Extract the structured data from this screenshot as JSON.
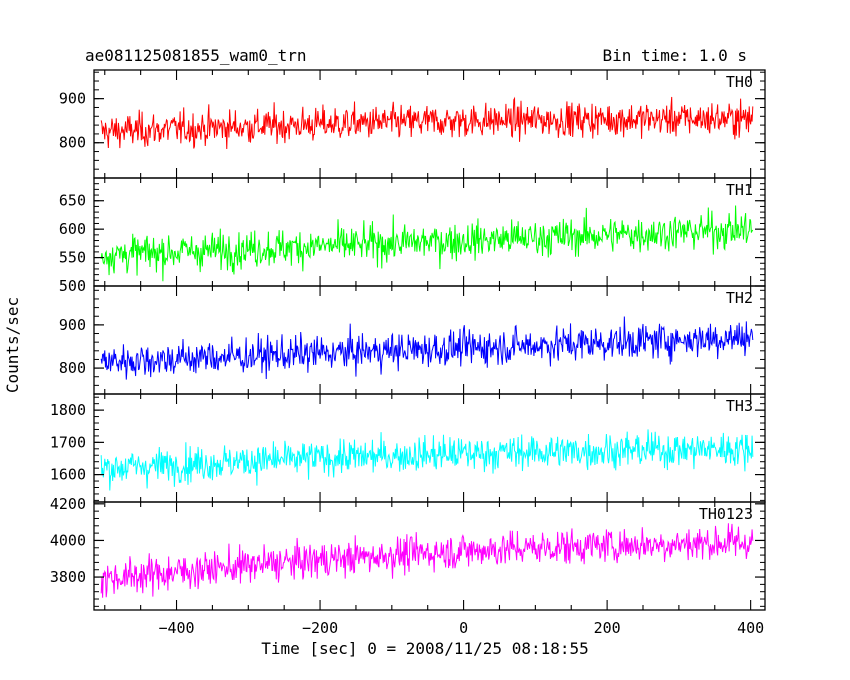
{
  "chart_data": {
    "type": "line",
    "title": "ae081125081855_wam0_trn",
    "subtitle": "Bin time: 1.0 s",
    "xlabel": "Time [sec] 0 = 2008/11/25 08:18:55",
    "ylabel": "Counts/sec",
    "xlim": [
      -515,
      420
    ],
    "x_ticks": [
      -400,
      -200,
      0,
      200,
      400
    ],
    "x_tick_labels": [
      "−400",
      "−200",
      "0",
      "200",
      "400"
    ],
    "x_range": [
      -505,
      403
    ],
    "grid": false,
    "panels": [
      {
        "name": "TH0",
        "color": "#ff0000",
        "ylim": [
          720,
          965
        ],
        "y_ticks": [
          800,
          900
        ],
        "y_tick_labels": [
          "800",
          "900"
        ],
        "mean_start": 825,
        "mean_end": 855,
        "mean_peak": 868,
        "noise": 30
      },
      {
        "name": "TH1",
        "color": "#00ff00",
        "ylim": [
          500,
          690
        ],
        "y_ticks": [
          500,
          550,
          600,
          650
        ],
        "y_tick_labels": [
          "500",
          "550",
          "600",
          "650"
        ],
        "mean_start": 555,
        "mean_end": 600,
        "mean_peak": 600,
        "noise": 25
      },
      {
        "name": "TH2",
        "color": "#0000ff",
        "ylim": [
          740,
          990
        ],
        "y_ticks": [
          800,
          900
        ],
        "y_tick_labels": [
          "800",
          "900"
        ],
        "mean_start": 815,
        "mean_end": 872,
        "mean_peak": 872,
        "noise": 32
      },
      {
        "name": "TH3",
        "color": "#00ffff",
        "ylim": [
          1515,
          1850
        ],
        "y_ticks": [
          1600,
          1700,
          1800
        ],
        "y_tick_labels": [
          "1600",
          "1700",
          "1800"
        ],
        "mean_start": 1620,
        "mean_end": 1680,
        "mean_peak": 1700,
        "noise": 42
      },
      {
        "name": "TH0123",
        "color": "#ff00ff",
        "ylim": [
          3620,
          4210
        ],
        "y_ticks": [
          3800,
          4000,
          4200
        ],
        "y_tick_labels": [
          "3800",
          "4000",
          "4200"
        ],
        "mean_start": 3790,
        "mean_end": 3990,
        "mean_peak": 4060,
        "noise": 75
      }
    ]
  }
}
